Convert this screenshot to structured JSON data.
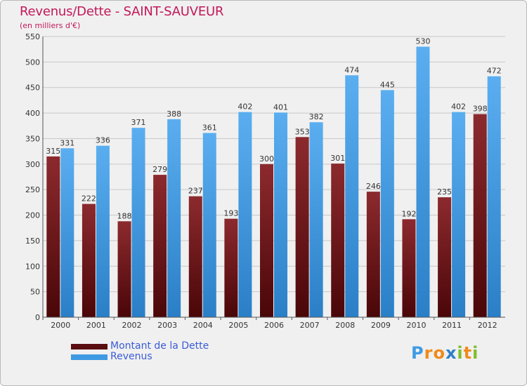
{
  "header": {
    "title": "Revenus/Dette - SAINT-SAUVEUR",
    "subtitle": "(en milliers d'€)"
  },
  "chart_data": {
    "type": "bar",
    "title": "Revenus/Dette - SAINT-SAUVEUR",
    "ylabel": "(en milliers d'€)",
    "xlabel": "",
    "ylim": [
      0,
      550
    ],
    "yticks": [
      0,
      50,
      100,
      150,
      200,
      250,
      300,
      350,
      400,
      450,
      500,
      550
    ],
    "grid": true,
    "categories": [
      "2000",
      "2001",
      "2002",
      "2003",
      "2004",
      "2005",
      "2006",
      "2007",
      "2008",
      "2009",
      "2010",
      "2011",
      "2012"
    ],
    "series": [
      {
        "name": "Montant de la Dette",
        "color": "#7a1c20",
        "values": [
          315,
          222,
          188,
          279,
          237,
          193,
          300,
          353,
          301,
          246,
          192,
          235,
          398
        ]
      },
      {
        "name": "Revenus",
        "color": "#3f9ae3",
        "values": [
          331,
          336,
          371,
          388,
          361,
          402,
          401,
          382,
          474,
          445,
          530,
          402,
          472
        ]
      }
    ]
  },
  "legend": {
    "items": [
      {
        "label": "Montant de la Dette",
        "color": "#5a0d10"
      },
      {
        "label": "Revenus",
        "color": "#3f9ae3"
      }
    ]
  },
  "logo": {
    "letters": [
      "P",
      "r",
      "o",
      "x",
      "i",
      "t",
      "i"
    ],
    "colors": [
      "#3f9ae3",
      "#f08a1c",
      "#f08a1c",
      "#2f7fc9",
      "#7cbf2a",
      "#f08a1c",
      "#7cbf2a"
    ]
  }
}
